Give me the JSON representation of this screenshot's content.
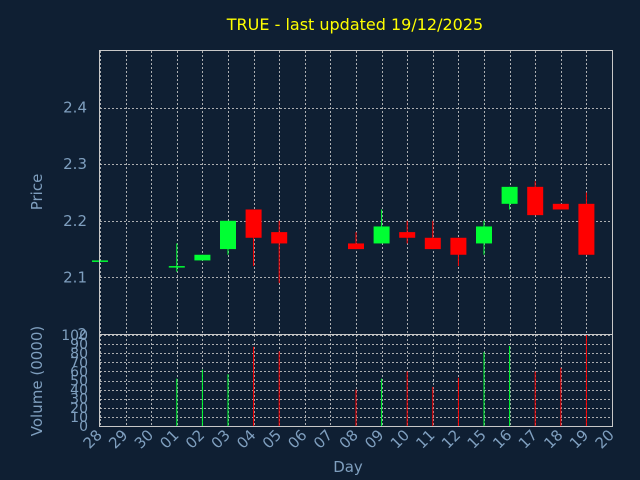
{
  "chart_data": {
    "type": "candlestick",
    "title": "TRUE - last updated 19/12/2025",
    "ylabel_price": "Price",
    "ylabel_volume": "Volume (0000)",
    "xlabel": "Day",
    "price_ylim": [
      2.0,
      2.5
    ],
    "price_ticks": [
      2.0,
      2.1,
      2.2,
      2.3,
      2.4
    ],
    "price_tick_labels": [
      "2",
      "2.1",
      "2.2",
      "2.3",
      "2.4"
    ],
    "volume_ylim": [
      0,
      100
    ],
    "volume_ticks": [
      0,
      10,
      20,
      30,
      40,
      50,
      60,
      70,
      80,
      90,
      100
    ],
    "volume_tick_labels": [
      "0",
      "10",
      "20",
      "30",
      "40",
      "50",
      "60",
      "70",
      "80",
      "90",
      "100"
    ],
    "grid": true,
    "x_labels": [
      "28",
      "29",
      "30",
      "01",
      "02",
      "03",
      "04",
      "05",
      "06",
      "07",
      "08",
      "09",
      "10",
      "11",
      "12",
      "15",
      "16",
      "17",
      "18",
      "19",
      "20"
    ],
    "colors": {
      "up": "#00ff33",
      "down": "#ff0000",
      "background": "#0f1f33",
      "title": "#ffff00",
      "text": "#7f9fbf"
    },
    "candles": [
      {
        "day": "28",
        "open": 2.13,
        "high": 2.13,
        "low": 2.13,
        "close": 2.13,
        "volume": 0
      },
      {
        "day": "01",
        "open": 2.12,
        "high": 2.16,
        "low": 2.11,
        "close": 2.12,
        "volume": 52
      },
      {
        "day": "02",
        "open": 2.13,
        "high": 2.14,
        "low": 2.13,
        "close": 2.14,
        "volume": 62
      },
      {
        "day": "03",
        "open": 2.15,
        "high": 2.2,
        "low": 2.14,
        "close": 2.2,
        "volume": 57
      },
      {
        "day": "04",
        "open": 2.22,
        "high": 2.22,
        "low": 2.12,
        "close": 2.17,
        "volume": 87
      },
      {
        "day": "05",
        "open": 2.18,
        "high": 2.2,
        "low": 2.09,
        "close": 2.16,
        "volume": 82
      },
      {
        "day": "08",
        "open": 2.16,
        "high": 2.18,
        "low": 2.15,
        "close": 2.15,
        "volume": 40
      },
      {
        "day": "09",
        "open": 2.16,
        "high": 2.22,
        "low": 2.16,
        "close": 2.19,
        "volume": 52
      },
      {
        "day": "10",
        "open": 2.18,
        "high": 2.2,
        "low": 2.16,
        "close": 2.17,
        "volume": 60
      },
      {
        "day": "11",
        "open": 2.17,
        "high": 2.2,
        "low": 2.15,
        "close": 2.15,
        "volume": 43
      },
      {
        "day": "12",
        "open": 2.17,
        "high": 2.17,
        "low": 2.12,
        "close": 2.14,
        "volume": 53
      },
      {
        "day": "15",
        "open": 2.16,
        "high": 2.2,
        "low": 2.14,
        "close": 2.19,
        "volume": 81
      },
      {
        "day": "16",
        "open": 2.23,
        "high": 2.26,
        "low": 2.22,
        "close": 2.26,
        "volume": 88
      },
      {
        "day": "17",
        "open": 2.26,
        "high": 2.27,
        "low": 2.21,
        "close": 2.21,
        "volume": 60
      },
      {
        "day": "18",
        "open": 2.23,
        "high": 2.23,
        "low": 2.22,
        "close": 2.22,
        "volume": 64
      },
      {
        "day": "19",
        "open": 2.23,
        "high": 2.25,
        "low": 2.14,
        "close": 2.14,
        "volume": 100
      }
    ]
  }
}
